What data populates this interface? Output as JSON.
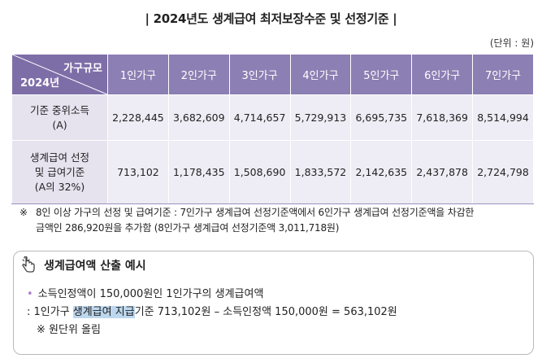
{
  "title": "| 2024년도 생계급여 최저보장수준 및 선정기준 |",
  "unit": "(단위 : 원)",
  "table": {
    "corner_top": "가구규모",
    "corner_bottom": "2024년",
    "columns": [
      "1인가구",
      "2인가구",
      "3인가구",
      "4인가구",
      "5인가구",
      "6인가구",
      "7인가구"
    ],
    "rows": [
      {
        "label_line1": "기준 중위소득",
        "label_line2": "(A)",
        "label_line3": "",
        "values": [
          "2,228,445",
          "3,682,609",
          "4,714,657",
          "5,729,913",
          "6,695,735",
          "7,618,369",
          "8,514,994"
        ]
      },
      {
        "label_line1": "생계급여 선정",
        "label_line2": "및 급여기준",
        "label_line3": "(A의 32%)",
        "values": [
          "713,102",
          "1,178,435",
          "1,508,690",
          "1,833,572",
          "2,142,635",
          "2,437,878",
          "2,724,798"
        ]
      }
    ]
  },
  "note": {
    "mark": "※",
    "line1": "8인 이상 가구의 선정 및 급여기준 : 7인가구 생계급여 선정기준액에서 6인가구 생계급여 선정기준액을 차감한",
    "line2": "금액인 286,920원을 추가함 (8인가구 생계급여 선정기준액 3,011,718원)"
  },
  "example": {
    "title": "생계급여액 산출 예시",
    "icon": "pointing-hand-icon",
    "bullet": "•",
    "line1": "소득인정액이 150,000원인 1인가구의 생계급여액",
    "line2_pre": ": 1인가구 ",
    "line2_highlight": "생계급여 지급",
    "line2_post": "기준 713,102원 – 소득인정액 150,000원 = 563,102원",
    "line3": "※ 원단위 올림"
  },
  "colors": {
    "header_bg": "#8c7fb3",
    "corner_bg": "#7e6ea8",
    "cell_bg": "#eeecf4",
    "highlight": "#bcd7ee",
    "bullet": "#b07cc8"
  }
}
